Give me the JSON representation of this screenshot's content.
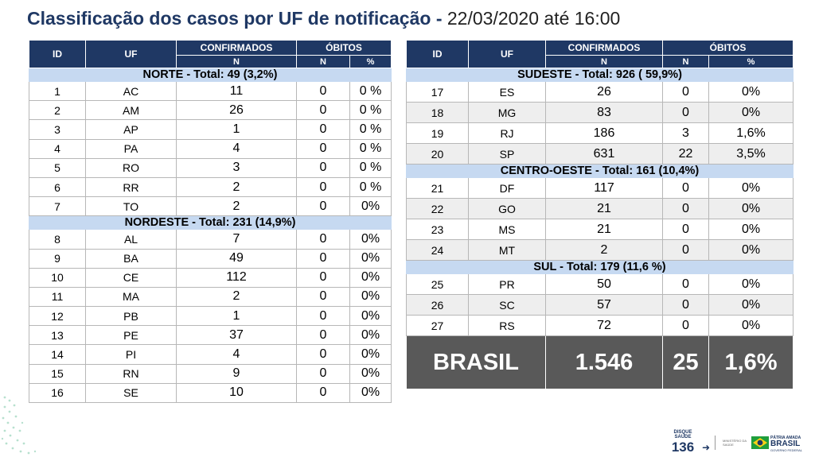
{
  "header": {
    "title": "Classificação dos casos por UF de notificação -",
    "date": "22/03/2020 até 16:00"
  },
  "columns": {
    "id": "ID",
    "uf": "UF",
    "confirmados": "CONFIRMADOS",
    "obitos": "ÓBITOS",
    "n": "N",
    "n2": "N",
    "pct": "%"
  },
  "left_table": {
    "regions": [
      {
        "title": "NORTE - Total: 49 (3,2%)",
        "rows": [
          [
            "1",
            "AC",
            "11",
            "0",
            "0 %"
          ],
          [
            "2",
            "AM",
            "26",
            "0",
            "0 %"
          ],
          [
            "3",
            "AP",
            "1",
            "0",
            "0 %"
          ],
          [
            "4",
            "PA",
            "4",
            "0",
            "0 %"
          ],
          [
            "5",
            "RO",
            "3",
            "0",
            "0 %"
          ],
          [
            "6",
            "RR",
            "2",
            "0",
            "0 %"
          ],
          [
            "7",
            "TO",
            "2",
            "0",
            "0%"
          ]
        ]
      },
      {
        "title": "NORDESTE -  Total: 231 (14,9%)",
        "rows": [
          [
            "8",
            "AL",
            "7",
            "0",
            "0%"
          ],
          [
            "9",
            "BA",
            "49",
            "0",
            "0%"
          ],
          [
            "10",
            "CE",
            "112",
            "0",
            "0%"
          ],
          [
            "11",
            "MA",
            "2",
            "0",
            "0%"
          ],
          [
            "12",
            "PB",
            "1",
            "0",
            "0%"
          ],
          [
            "13",
            "PE",
            "37",
            "0",
            "0%"
          ],
          [
            "14",
            "PI",
            "4",
            "0",
            "0%"
          ],
          [
            "15",
            "RN",
            "9",
            "0",
            "0%"
          ],
          [
            "16",
            "SE",
            "10",
            "0",
            "0%"
          ]
        ]
      }
    ]
  },
  "right_table": {
    "regions": [
      {
        "title": "SUDESTE - Total: 926 ( 59,9%)",
        "rows": [
          [
            "17",
            "ES",
            "26",
            "0",
            "0%"
          ],
          [
            "18",
            "MG",
            "83",
            "0",
            "0%"
          ],
          [
            "19",
            "RJ",
            "186",
            "3",
            "1,6%"
          ],
          [
            "20",
            "SP",
            "631",
            "22",
            "3,5%"
          ]
        ]
      },
      {
        "title": "CENTRO-OESTE - Total: 161 (10,4%)",
        "rows": [
          [
            "21",
            "DF",
            "117",
            "0",
            "0%"
          ],
          [
            "22",
            "GO",
            "21",
            "0",
            "0%"
          ],
          [
            "23",
            "MS",
            "21",
            "0",
            "0%"
          ],
          [
            "24",
            "MT",
            "2",
            "0",
            "0%"
          ]
        ]
      },
      {
        "title": "SUL - Total:  179 (11,6 %)",
        "rows": [
          [
            "25",
            "PR",
            "50",
            "0",
            "0%"
          ],
          [
            "26",
            "SC",
            "57",
            "0",
            "0%"
          ],
          [
            "27",
            "RS",
            "72",
            "0",
            "0%"
          ]
        ]
      }
    ],
    "total": {
      "label": "BRASIL",
      "confirmados": "1.546",
      "obitos": "25",
      "pct": "1,6%"
    }
  },
  "footer": {
    "disque_1": "DISQUE",
    "disque_2": "SAÚDE",
    "disque_num": "136",
    "ministerio": "MINISTÉRIO DA SAÚDE",
    "patria": "PÁTRIA AMADA",
    "brasil": "BRASIL",
    "gov": "GOVERNO FEDERAL"
  },
  "colors": {
    "header_bg": "#1f3864",
    "region_bg": "#c6d9f1",
    "total_bg": "#595959",
    "title": "#1f3864"
  }
}
